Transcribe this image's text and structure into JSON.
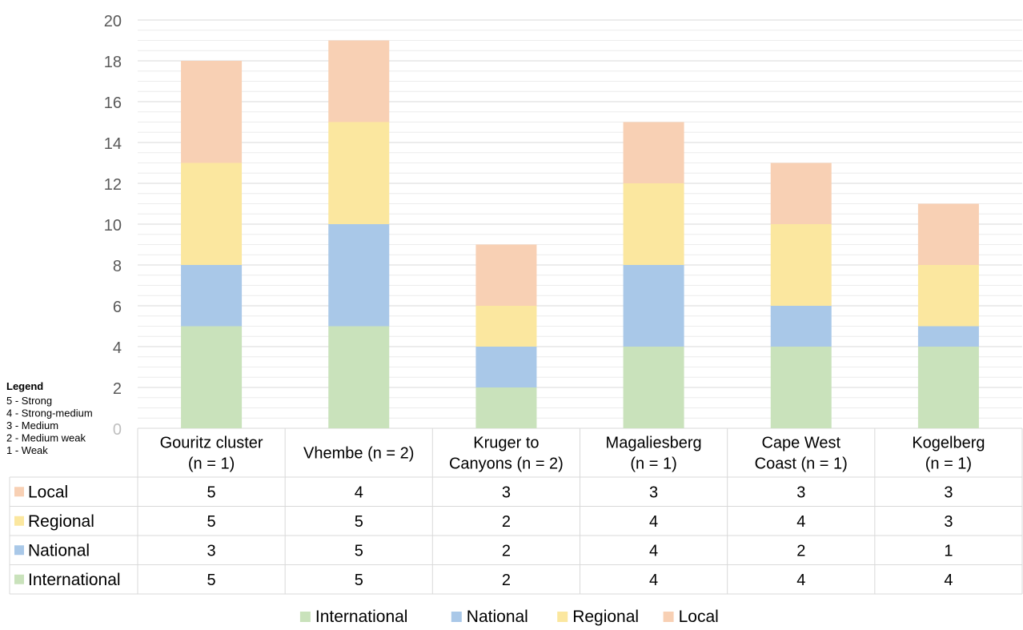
{
  "chart_data": {
    "type": "bar",
    "stacked": true,
    "title": "",
    "xlabel": "",
    "ylabel": "",
    "ylim": [
      0,
      20
    ],
    "yticks": [
      "0",
      "2",
      "4",
      "6",
      "8",
      "10",
      "12",
      "14",
      "16",
      "18",
      "20"
    ],
    "grid": true,
    "categories": [
      [
        "Gouritz cluster",
        "(n = 1)"
      ],
      [
        "Vhembe (n = 2)"
      ],
      [
        "Kruger to",
        "Canyons (n = 2)"
      ],
      [
        "Magaliesberg",
        "(n = 1)"
      ],
      [
        "Cape West",
        "Coast (n = 1)"
      ],
      [
        "Kogelberg",
        "(n = 1)"
      ]
    ],
    "series": [
      {
        "name": "International",
        "color": "#c9e2bb",
        "values": [
          5,
          5,
          2,
          4,
          4,
          4
        ]
      },
      {
        "name": "National",
        "color": "#a9c8e8",
        "values": [
          3,
          5,
          2,
          4,
          2,
          1
        ]
      },
      {
        "name": "Regional",
        "color": "#fbe79f",
        "values": [
          5,
          5,
          2,
          4,
          4,
          3
        ]
      },
      {
        "name": "Local",
        "color": "#f8d0b4",
        "values": [
          5,
          4,
          3,
          3,
          3,
          3
        ]
      }
    ],
    "table_row_order": [
      "Local",
      "Regional",
      "National",
      "International"
    ],
    "legend_position": "bottom",
    "legend_order": [
      "International",
      "National",
      "Regional",
      "Local"
    ],
    "scale_note": {
      "title": "Legend",
      "lines": [
        "5 - Strong",
        "4 - Strong-medium",
        "3 - Medium",
        "2 - Medium weak",
        "1 - Weak"
      ]
    }
  }
}
